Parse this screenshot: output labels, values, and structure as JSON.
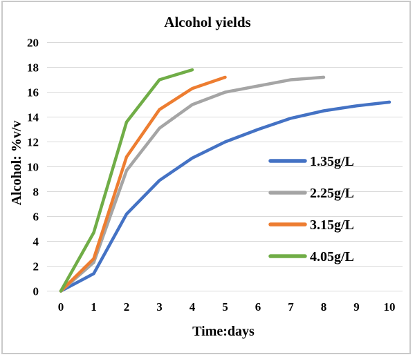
{
  "window": {
    "background": "#ffffff",
    "frame_border_color": "#c9c9c9"
  },
  "chart_data": {
    "type": "line",
    "title": "Alcohol yields",
    "xlabel": "Time:days",
    "ylabel": "Alcohol: %v/v",
    "xlim": [
      0,
      10
    ],
    "ylim": [
      0,
      20
    ],
    "x_ticks": [
      0,
      1,
      2,
      3,
      4,
      5,
      6,
      7,
      8,
      9,
      10
    ],
    "y_ticks": [
      0,
      2,
      4,
      6,
      8,
      10,
      12,
      14,
      16,
      18,
      20
    ],
    "grid": "horizontal",
    "grid_color": "#d9d9d9",
    "text_color": "#000000",
    "legend_position": "middle-right",
    "series": [
      {
        "name": "1.35g/L",
        "color": "#4472C4",
        "x": [
          0,
          1,
          2,
          3,
          4,
          5,
          6,
          7,
          8,
          9,
          10
        ],
        "values": [
          0,
          1.4,
          6.2,
          8.9,
          10.7,
          12.0,
          13.0,
          13.9,
          14.5,
          14.9,
          15.2
        ]
      },
      {
        "name": "2.25g/L",
        "color": "#A5A5A5",
        "x": [
          0,
          1,
          2,
          3,
          4,
          5,
          6,
          7,
          8
        ],
        "values": [
          0,
          2.3,
          9.7,
          13.1,
          15.0,
          16.0,
          16.5,
          17.0,
          17.2
        ]
      },
      {
        "name": "3.15g/L",
        "color": "#ED7D31",
        "x": [
          0,
          1,
          2,
          3,
          4,
          5
        ],
        "values": [
          0,
          2.6,
          10.8,
          14.6,
          16.3,
          17.2
        ]
      },
      {
        "name": "4.05g/L",
        "color": "#70AD47",
        "x": [
          0,
          1,
          2,
          3,
          4
        ],
        "values": [
          0,
          4.7,
          13.6,
          17.0,
          17.8
        ]
      }
    ]
  }
}
